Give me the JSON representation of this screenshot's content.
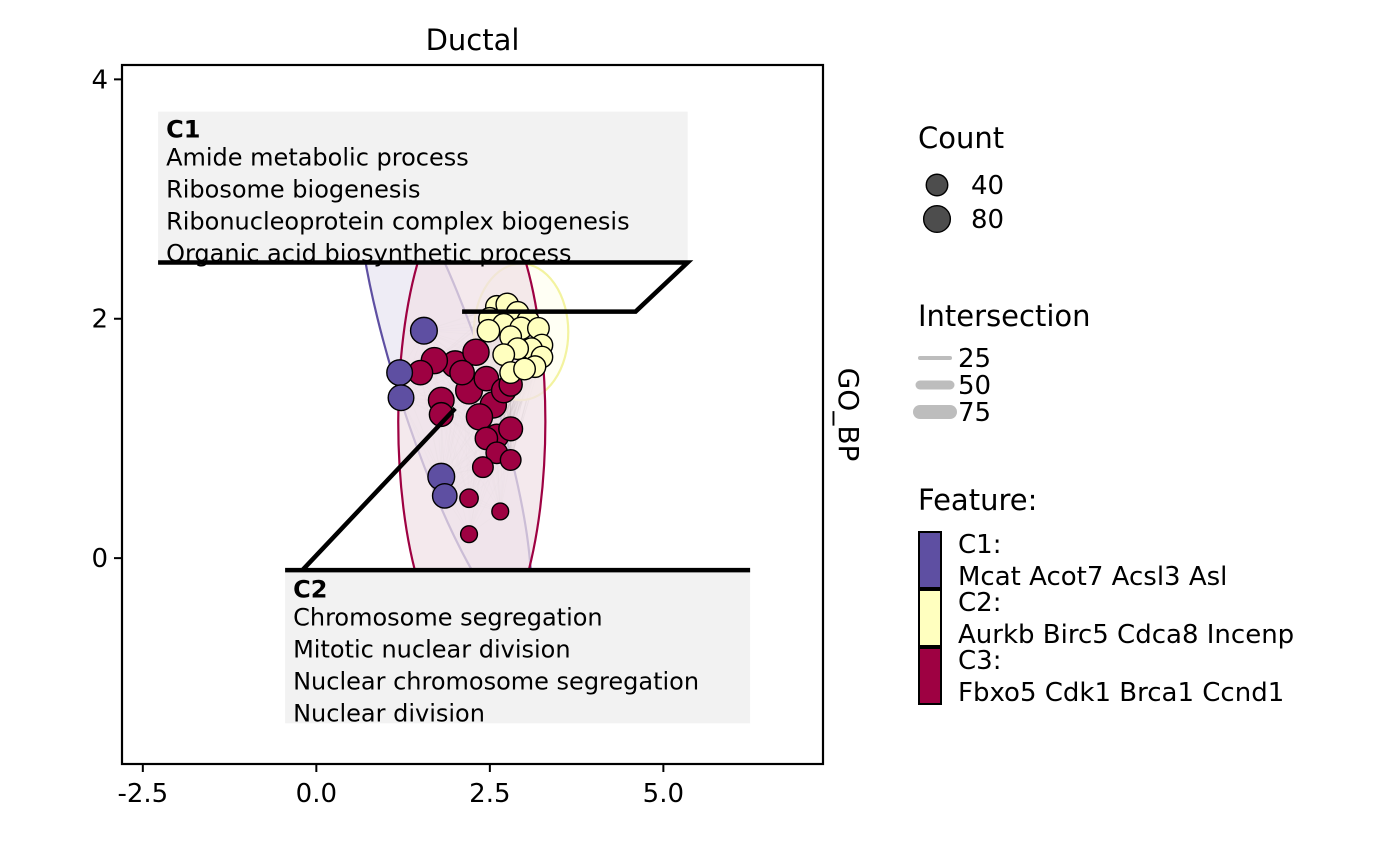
{
  "chart_data": {
    "type": "network-scatter",
    "title": "Ductal",
    "strip_label": "GO_BP",
    "xlim": [
      -2.8,
      7.3
    ],
    "ylim": [
      -1.72,
      4.12
    ],
    "x_ticks": [
      -2.5,
      0.0,
      2.5,
      5.0
    ],
    "x_tick_labels": [
      "-2.5",
      "0.0",
      "2.5",
      "5.0"
    ],
    "y_ticks": [
      0,
      2,
      4
    ],
    "y_tick_labels": [
      "0",
      "2",
      "4"
    ],
    "clusters": [
      {
        "id": "C1",
        "color": "#5e4fa2",
        "fill": "#e8e6f2",
        "ellipse": {
          "cx": 1.85,
          "cy": 1.41,
          "rx": 0.65,
          "ry": 2.02,
          "angle": -18
        },
        "points": [
          {
            "x": 1.55,
            "y": 1.9,
            "count": 80
          },
          {
            "x": 1.2,
            "y": 1.55,
            "count": 70
          },
          {
            "x": 1.22,
            "y": 1.34,
            "count": 70
          },
          {
            "x": 1.8,
            "y": 0.68,
            "count": 80
          },
          {
            "x": 1.85,
            "y": 0.52,
            "count": 60
          }
        ]
      },
      {
        "id": "C2",
        "color": "#ffffbf",
        "fill": "#fffff0",
        "ellipse": {
          "cx": 2.95,
          "cy": 1.89,
          "rx": 0.68,
          "ry": 0.57,
          "angle": 0
        },
        "points": [
          {
            "x": 2.6,
            "y": 2.1,
            "count": 45
          },
          {
            "x": 2.75,
            "y": 2.12,
            "count": 45
          },
          {
            "x": 2.9,
            "y": 2.05,
            "count": 45
          },
          {
            "x": 2.5,
            "y": 2.0,
            "count": 45
          },
          {
            "x": 3.05,
            "y": 1.98,
            "count": 45
          },
          {
            "x": 2.7,
            "y": 1.95,
            "count": 45
          },
          {
            "x": 2.95,
            "y": 1.92,
            "count": 45
          },
          {
            "x": 2.48,
            "y": 1.9,
            "count": 45
          },
          {
            "x": 3.2,
            "y": 1.92,
            "count": 40
          },
          {
            "x": 3.25,
            "y": 1.78,
            "count": 40
          },
          {
            "x": 2.8,
            "y": 1.85,
            "count": 40
          },
          {
            "x": 3.1,
            "y": 1.75,
            "count": 40
          },
          {
            "x": 2.9,
            "y": 1.75,
            "count": 40
          },
          {
            "x": 3.25,
            "y": 1.68,
            "count": 40
          },
          {
            "x": 3.15,
            "y": 1.6,
            "count": 40
          },
          {
            "x": 2.7,
            "y": 1.7,
            "count": 40
          },
          {
            "x": 2.8,
            "y": 1.55,
            "count": 40
          },
          {
            "x": 3.0,
            "y": 1.58,
            "count": 40
          }
        ]
      },
      {
        "id": "C3",
        "color": "#9e0142",
        "fill": "#f0e2e7",
        "ellipse": {
          "cx": 2.24,
          "cy": 1.14,
          "rx": 1.06,
          "ry": 1.96,
          "angle": 0
        },
        "points": [
          {
            "x": 2.0,
            "y": 1.62,
            "count": 80
          },
          {
            "x": 1.7,
            "y": 1.65,
            "count": 75
          },
          {
            "x": 2.3,
            "y": 1.72,
            "count": 75
          },
          {
            "x": 2.2,
            "y": 1.4,
            "count": 80
          },
          {
            "x": 2.55,
            "y": 1.28,
            "count": 75
          },
          {
            "x": 2.35,
            "y": 1.18,
            "count": 75
          },
          {
            "x": 1.8,
            "y": 1.32,
            "count": 70
          },
          {
            "x": 1.5,
            "y": 1.55,
            "count": 60
          },
          {
            "x": 2.45,
            "y": 1.5,
            "count": 60
          },
          {
            "x": 2.7,
            "y": 1.4,
            "count": 60
          },
          {
            "x": 2.1,
            "y": 1.55,
            "count": 60
          },
          {
            "x": 1.8,
            "y": 1.2,
            "count": 55
          },
          {
            "x": 2.6,
            "y": 1.02,
            "count": 55
          },
          {
            "x": 2.8,
            "y": 1.08,
            "count": 55
          },
          {
            "x": 2.8,
            "y": 1.45,
            "count": 50
          },
          {
            "x": 2.45,
            "y": 1.0,
            "count": 45
          },
          {
            "x": 2.6,
            "y": 0.88,
            "count": 40
          },
          {
            "x": 2.4,
            "y": 0.76,
            "count": 35
          },
          {
            "x": 2.8,
            "y": 0.82,
            "count": 35
          },
          {
            "x": 2.2,
            "y": 0.5,
            "count": 25
          },
          {
            "x": 2.65,
            "y": 0.39,
            "count": 20
          },
          {
            "x": 2.2,
            "y": 0.2,
            "count": 20
          }
        ]
      }
    ],
    "annotations": [
      {
        "cluster": "C1",
        "heading": "C1",
        "lines": [
          "Amide metabolic process",
          "Ribosome biogenesis",
          "Ribonucleoprotein complex biogenesis",
          "Organic acid biosynthetic process"
        ],
        "box": {
          "x0": -2.28,
          "x1": 5.35,
          "y0": 2.48,
          "y1": 3.73
        },
        "leader": [
          [
            -2.28,
            2.47
          ],
          [
            5.35,
            2.47
          ],
          [
            4.6,
            2.06
          ],
          [
            2.1,
            2.06
          ]
        ]
      },
      {
        "cluster": "C2",
        "heading": "C2",
        "lines": [
          "Chromosome segregation",
          "Mitotic nuclear division",
          "Nuclear chromosome segregation",
          "Nuclear division"
        ],
        "box": {
          "x0": -0.45,
          "x1": 6.25,
          "y0": -1.38,
          "y1": -0.11
        },
        "leader": [
          [
            6.25,
            -0.1
          ],
          [
            -0.45,
            -0.1
          ],
          [
            -0.2,
            -0.1
          ],
          [
            2.0,
            1.25
          ]
        ]
      }
    ],
    "legend": {
      "placement": "right",
      "count": {
        "title": "Count",
        "entries": [
          {
            "label": "40",
            "value": 40
          },
          {
            "label": "80",
            "value": 80
          }
        ]
      },
      "intersection": {
        "title": "Intersection",
        "entries": [
          {
            "label": "25",
            "value": 25
          },
          {
            "label": "50",
            "value": 50
          },
          {
            "label": "75",
            "value": 75
          }
        ],
        "color": "#bdbdbd"
      },
      "feature": {
        "title": "Feature:",
        "entries": [
          {
            "label": "C1:",
            "genes": "Mcat Acot7 Acsl3 Asl",
            "color": "#5e4fa2"
          },
          {
            "label": "C2:",
            "genes": "Aurkb Birc5 Cdca8 Incenp",
            "color": "#ffffbf"
          },
          {
            "label": "C3:",
            "genes": "Fbxo5 Cdk1 Brca1 Ccnd1",
            "color": "#9e0142"
          }
        ]
      }
    }
  }
}
